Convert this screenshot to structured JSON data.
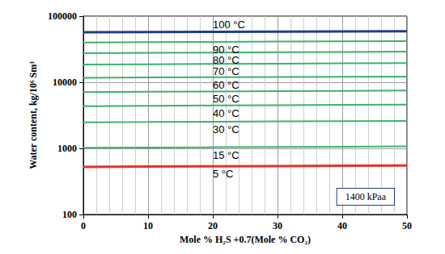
{
  "chart_data": {
    "type": "line",
    "x_label": "Mole % H₂S +0.7(Mole % CO₂)",
    "y_label": "Water content, kg/10⁶ Sm³",
    "annotation": "1400 kPaa",
    "x": [
      0,
      10,
      20,
      30,
      40,
      50
    ],
    "series": [
      {
        "name": "100 °C",
        "color": "#1f3d8a",
        "values": [
          57000,
          57400,
          57800,
          58200,
          58600,
          59000
        ]
      },
      {
        "name": "90 °C",
        "color": "#3cb36b",
        "values": [
          40000,
          40400,
          40800,
          41200,
          41600,
          42000
        ]
      },
      {
        "name": "80 °C",
        "color": "#3cb36b",
        "values": [
          27500,
          27800,
          28100,
          28400,
          28700,
          29000
        ]
      },
      {
        "name": "70 °C",
        "color": "#3cb36b",
        "values": [
          18500,
          18700,
          18900,
          19100,
          19300,
          19500
        ]
      },
      {
        "name": "60 °C",
        "color": "#3cb36b",
        "values": [
          11700,
          11800,
          11900,
          12000,
          12100,
          12200
        ]
      },
      {
        "name": "50 °C",
        "color": "#3cb36b",
        "values": [
          7100,
          7180,
          7260,
          7340,
          7420,
          7500
        ]
      },
      {
        "name": "40 °C",
        "color": "#3cb36b",
        "values": [
          4350,
          4400,
          4450,
          4500,
          4550,
          4600
        ]
      },
      {
        "name": "30 °C",
        "color": "#3cb36b",
        "values": [
          2480,
          2500,
          2530,
          2560,
          2580,
          2600
        ]
      },
      {
        "name": "15 °C",
        "color": "#3cb36b",
        "values": [
          1020,
          1030,
          1040,
          1050,
          1060,
          1070
        ]
      },
      {
        "name": "5 °C",
        "color": "#e8302a",
        "values": [
          525,
          530,
          535,
          540,
          545,
          550
        ]
      }
    ],
    "xlim": [
      0,
      50
    ],
    "xticks": [
      0,
      10,
      20,
      30,
      40,
      50
    ],
    "ylim": [
      100,
      100000
    ],
    "yticks": [
      100,
      1000,
      10000,
      100000
    ],
    "log": "y",
    "grid": true
  }
}
